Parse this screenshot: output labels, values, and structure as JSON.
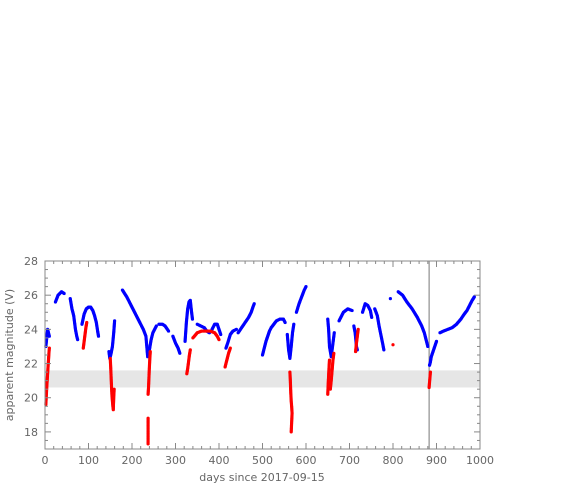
{
  "chart_data": {
    "type": "scatter",
    "title": "",
    "xlabel": "days since 2017-09-15",
    "ylabel": "apparent magnitude (V)",
    "xlim": [
      0,
      1000
    ],
    "ylim": [
      17,
      28
    ],
    "x_ticks": [
      "0",
      "100",
      "200",
      "300",
      "400",
      "500",
      "600",
      "700",
      "800",
      "900",
      "1000"
    ],
    "y_ticks": [
      "18",
      "20",
      "22",
      "24",
      "26",
      "28"
    ],
    "grid": false,
    "legend": "none",
    "shaded_band": {
      "y_range": [
        20.6,
        21.6
      ],
      "color": "#e6e6e6"
    },
    "vertical_line": {
      "x": 883,
      "color": "#777777"
    },
    "series": [
      {
        "color": "#0000ff",
        "segments": [
          [
            [
              2,
              23.0
            ],
            [
              4,
              23.5
            ],
            [
              6,
              24.0
            ],
            [
              8,
              23.8
            ],
            [
              10,
              23.6
            ]
          ],
          [
            [
              24,
              25.6
            ],
            [
              30,
              26.0
            ],
            [
              38,
              26.2
            ],
            [
              44,
              26.1
            ]
          ],
          [
            [
              58,
              25.8
            ],
            [
              62,
              25.2
            ],
            [
              66,
              24.8
            ],
            [
              70,
              24.0
            ],
            [
              73,
              23.6
            ],
            [
              75,
              23.4
            ]
          ],
          [
            [
              85,
              24.3
            ],
            [
              90,
              24.9
            ],
            [
              95,
              25.2
            ],
            [
              100,
              25.3
            ],
            [
              105,
              25.3
            ],
            [
              110,
              25.1
            ],
            [
              114,
              24.8
            ],
            [
              118,
              24.4
            ],
            [
              121,
              23.9
            ],
            [
              123,
              23.6
            ]
          ],
          [
            [
              147,
              22.7
            ],
            [
              149,
              22.3
            ],
            [
              152,
              22.6
            ],
            [
              155,
              23.0
            ],
            [
              158,
              23.8
            ],
            [
              160,
              24.5
            ]
          ],
          [
            [
              178,
              26.3
            ],
            [
              188,
              25.9
            ],
            [
              198,
              25.4
            ],
            [
              208,
              24.9
            ],
            [
              218,
              24.4
            ],
            [
              226,
              24.0
            ],
            [
              232,
              23.6
            ],
            [
              236,
              22.4
            ]
          ],
          [
            [
              240,
              22.8
            ],
            [
              244,
              23.4
            ],
            [
              248,
              23.8
            ],
            [
              252,
              24.0
            ],
            [
              256,
              24.2
            ]
          ],
          [
            [
              262,
              24.3
            ],
            [
              270,
              24.3
            ],
            [
              276,
              24.2
            ],
            [
              284,
              23.9
            ]
          ],
          [
            [
              294,
              23.6
            ],
            [
              300,
              23.2
            ],
            [
              306,
              22.9
            ],
            [
              310,
              22.6
            ]
          ],
          [
            [
              322,
              23.3
            ],
            [
              325,
              24.4
            ],
            [
              328,
              25.2
            ],
            [
              331,
              25.6
            ],
            [
              334,
              25.7
            ],
            [
              337,
              25.0
            ],
            [
              339,
              24.6
            ]
          ],
          [
            [
              350,
              24.3
            ],
            [
              358,
              24.2
            ],
            [
              366,
              24.1
            ],
            [
              372,
              23.9
            ],
            [
              378,
              23.8
            ]
          ],
          [
            [
              384,
              24.0
            ],
            [
              390,
              24.3
            ],
            [
              396,
              24.3
            ],
            [
              400,
              24.0
            ],
            [
              404,
              23.7
            ]
          ],
          [
            [
              416,
              22.9
            ],
            [
              420,
              23.2
            ],
            [
              426,
              23.7
            ],
            [
              432,
              23.9
            ],
            [
              440,
              24.0
            ]
          ],
          [
            [
              444,
              23.8
            ],
            [
              452,
              24.1
            ],
            [
              460,
              24.4
            ],
            [
              468,
              24.7
            ],
            [
              474,
              25.0
            ],
            [
              478,
              25.3
            ],
            [
              481,
              25.5
            ]
          ],
          [
            [
              500,
              22.5
            ],
            [
              504,
              22.9
            ],
            [
              508,
              23.3
            ],
            [
              512,
              23.6
            ],
            [
              516,
              23.9
            ],
            [
              520,
              24.1
            ],
            [
              526,
              24.3
            ],
            [
              532,
              24.5
            ],
            [
              540,
              24.6
            ],
            [
              548,
              24.6
            ],
            [
              552,
              24.4
            ]
          ],
          [
            [
              557,
              23.7
            ],
            [
              560,
              22.8
            ],
            [
              563,
              22.3
            ],
            [
              566,
              23.0
            ],
            [
              569,
              23.8
            ],
            [
              572,
              24.3
            ]
          ],
          [
            [
              578,
              25.0
            ],
            [
              584,
              25.5
            ],
            [
              590,
              25.9
            ],
            [
              596,
              26.3
            ],
            [
              600,
              26.5
            ]
          ],
          [
            [
              650,
              24.6
            ],
            [
              652,
              24.0
            ],
            [
              654,
              23.0
            ],
            [
              658,
              22.4
            ],
            [
              662,
              23.2
            ],
            [
              665,
              23.8
            ]
          ],
          [
            [
              676,
              24.5
            ],
            [
              686,
              25.0
            ],
            [
              696,
              25.2
            ],
            [
              706,
              25.1
            ]
          ],
          [
            [
              710,
              24.2
            ],
            [
              713,
              23.8
            ],
            [
              716,
              23.0
            ],
            [
              718,
              22.8
            ]
          ],
          [
            [
              730,
              25.0
            ],
            [
              736,
              25.5
            ],
            [
              742,
              25.4
            ],
            [
              748,
              25.1
            ],
            [
              751,
              24.7
            ]
          ],
          [
            [
              758,
              25.2
            ],
            [
              764,
              24.8
            ],
            [
              768,
              24.2
            ],
            [
              772,
              23.7
            ],
            [
              776,
              23.2
            ],
            [
              779,
              22.8
            ]
          ],
          [
            [
              794,
              25.8
            ]
          ],
          [
            [
              812,
              26.2
            ],
            [
              822,
              26.0
            ],
            [
              832,
              25.6
            ],
            [
              844,
              25.2
            ],
            [
              856,
              24.7
            ],
            [
              866,
              24.2
            ],
            [
              872,
              23.8
            ],
            [
              876,
              23.4
            ],
            [
              880,
              23.0
            ]
          ],
          [
            [
              884,
              21.9
            ],
            [
              886,
              22.1
            ],
            [
              888,
              22.4
            ],
            [
              892,
              22.7
            ],
            [
              896,
              23.0
            ],
            [
              900,
              23.3
            ]
          ],
          [
            [
              908,
              23.8
            ],
            [
              916,
              23.9
            ],
            [
              926,
              24.0
            ],
            [
              936,
              24.1
            ],
            [
              946,
              24.3
            ],
            [
              956,
              24.6
            ],
            [
              964,
              24.9
            ],
            [
              970,
              25.1
            ],
            [
              976,
              25.4
            ],
            [
              982,
              25.7
            ],
            [
              987,
              25.9
            ]
          ]
        ]
      },
      {
        "color": "#ff0000",
        "segments": [
          [
            [
              2,
              19.6
            ],
            [
              3,
              20.1
            ],
            [
              4,
              20.6
            ],
            [
              5,
              21.0
            ],
            [
              6,
              21.4
            ],
            [
              7,
              21.8
            ],
            [
              8,
              22.2
            ],
            [
              9,
              22.6
            ],
            [
              10,
              22.9
            ]
          ],
          [
            [
              88,
              22.9
            ],
            [
              90,
              23.3
            ],
            [
              92,
              23.7
            ],
            [
              94,
              24.1
            ],
            [
              96,
              24.4
            ]
          ],
          [
            [
              150,
              22.3
            ],
            [
              151,
              21.8
            ],
            [
              152,
              21.2
            ],
            [
              153,
              20.6
            ],
            [
              154,
              20.1
            ],
            [
              155,
              19.8
            ],
            [
              156,
              19.5
            ],
            [
              157,
              19.3
            ],
            [
              158,
              20.0
            ],
            [
              159,
              20.5
            ]
          ],
          [
            [
              237,
              20.2
            ],
            [
              238,
              20.6
            ],
            [
              239,
              21.2
            ],
            [
              240,
              21.8
            ],
            [
              241,
              22.3
            ],
            [
              242,
              22.7
            ]
          ],
          [
            [
              237,
              18.8
            ],
            [
              237,
              18.4
            ],
            [
              237,
              17.6
            ],
            [
              237,
              17.3
            ]
          ],
          [
            [
              326,
              21.4
            ],
            [
              328,
              21.7
            ],
            [
              330,
              22.1
            ],
            [
              332,
              22.5
            ],
            [
              334,
              22.8
            ]
          ],
          [
            [
              340,
              23.5
            ],
            [
              350,
              23.8
            ],
            [
              360,
              23.9
            ],
            [
              370,
              23.9
            ],
            [
              380,
              23.9
            ],
            [
              390,
              23.8
            ],
            [
              396,
              23.6
            ],
            [
              400,
              23.4
            ]
          ],
          [
            [
              414,
              21.8
            ],
            [
              418,
              22.2
            ],
            [
              422,
              22.6
            ],
            [
              426,
              22.9
            ]
          ],
          [
            [
              563,
              21.5
            ],
            [
              564,
              21.0
            ],
            [
              565,
              20.3
            ],
            [
              566,
              19.8
            ],
            [
              567,
              19.5
            ],
            [
              568,
              19.1
            ],
            [
              566,
              18.0
            ]
          ],
          [
            [
              650,
              20.2
            ],
            [
              651,
              20.8
            ],
            [
              652,
              21.3
            ],
            [
              653,
              21.8
            ],
            [
              654,
              22.2
            ]
          ],
          [
            [
              656,
              20.5
            ],
            [
              658,
              21.0
            ],
            [
              660,
              21.6
            ],
            [
              662,
              22.2
            ],
            [
              664,
              22.6
            ]
          ],
          [
            [
              714,
              22.7
            ],
            [
              716,
              23.2
            ],
            [
              718,
              23.6
            ],
            [
              720,
              24.0
            ]
          ],
          [
            [
              800,
              23.1
            ]
          ],
          [
            [
              883,
              20.6
            ],
            [
              884,
              20.9
            ],
            [
              885,
              21.2
            ],
            [
              886,
              21.5
            ]
          ]
        ]
      }
    ]
  }
}
